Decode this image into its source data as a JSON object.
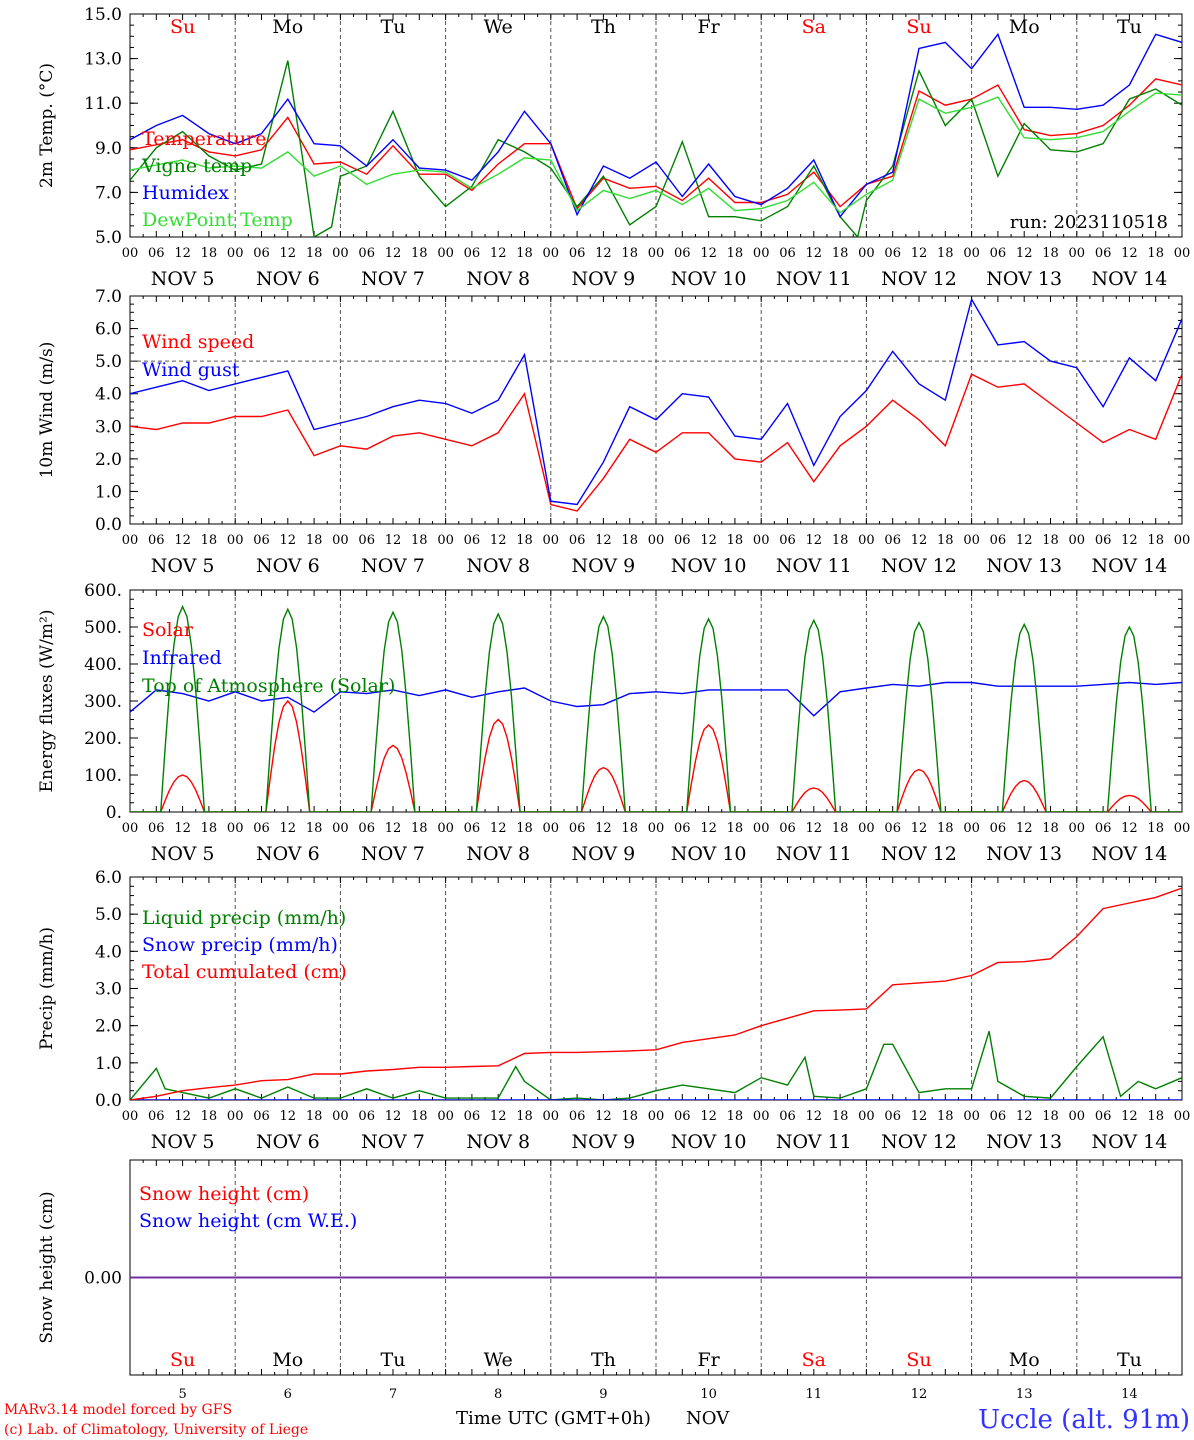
{
  "run_label": "run: 2023110518",
  "station": "Uccle (alt. 91m)",
  "credits": [
    "MARv3.14 model forced by GFS",
    "(c) Lab. of Climatology, University of Liege"
  ],
  "xaxis_title": "Time UTC (GMT+0h)",
  "month_label": "NOV",
  "date_labels": [
    "NOV  5",
    "NOV  6",
    "NOV  7",
    "NOV  8",
    "NOV  9",
    "NOV 10",
    "NOV 11",
    "NOV 12",
    "NOV 13",
    "NOV 14"
  ],
  "weekdays": [
    "Su",
    "Mo",
    "Tu",
    "We",
    "Th",
    "Fr",
    "Sa",
    "Su",
    "Mo",
    "Tu"
  ],
  "weekend_flags": [
    true,
    false,
    false,
    false,
    false,
    false,
    true,
    true,
    false,
    false
  ],
  "day_numbers": [
    "5",
    "6",
    "7",
    "8",
    "9",
    "10",
    "11",
    "12",
    "13",
    "14"
  ],
  "hour_labels": [
    "00",
    "06",
    "12",
    "18"
  ],
  "final_hour_label": "00",
  "colors": {
    "red": "#ff0000",
    "green": "#008000",
    "blue": "#0000ff",
    "light_green": "#33dd33",
    "purple": "#7030a0",
    "grid": "#555555"
  },
  "chart_data": [
    {
      "type": "line",
      "ylabel": "2m Temp. (°C)",
      "ylim": [
        5,
        16
      ],
      "yticks": [
        "5.0",
        "7.0",
        "9.0",
        "11.0",
        "13.0",
        "15.0"
      ],
      "x_unit": "hours since 2023-11-05 00 UTC",
      "series": [
        {
          "name": "Temperature",
          "color": "#ff0000",
          "x": [
            0,
            12,
            18,
            24,
            30,
            36,
            42,
            48,
            54,
            60,
            66,
            72,
            78,
            84,
            90,
            96,
            102,
            108,
            114,
            120,
            126,
            132,
            138,
            144,
            150,
            156,
            162,
            168,
            174,
            180,
            186,
            192,
            198,
            204,
            210,
            216,
            222,
            228,
            234,
            240
          ],
          "y": [
            9.3,
            9.8,
            9.2,
            9.0,
            9.3,
            10.9,
            8.6,
            8.7,
            8.1,
            9.5,
            8.1,
            8.1,
            7.3,
            8.6,
            9.6,
            9.6,
            6.4,
            7.9,
            7.4,
            7.5,
            6.8,
            7.9,
            6.7,
            6.7,
            7.1,
            8.2,
            6.5,
            7.6,
            8.0,
            12.2,
            11.5,
            11.8,
            12.5,
            10.3,
            10.0,
            10.1,
            10.5,
            11.5,
            12.8,
            12.5
          ]
        },
        {
          "name": "Vigne temp",
          "color": "#008000",
          "x": [
            0,
            6,
            12,
            18,
            24,
            30,
            36,
            40,
            42,
            46,
            48,
            54,
            60,
            66,
            72,
            78,
            84,
            90,
            96,
            102,
            108,
            114,
            120,
            126,
            132,
            138,
            144,
            150,
            156,
            162,
            166,
            168,
            174,
            180,
            186,
            192,
            198,
            204,
            210,
            216,
            222,
            228,
            234,
            240
          ],
          "y": [
            7.8,
            9.4,
            10.2,
            9.0,
            8.3,
            8.6,
            13.7,
            8.0,
            5.0,
            5.5,
            8.0,
            8.5,
            11.2,
            8.0,
            6.5,
            7.5,
            9.8,
            9.2,
            8.4,
            6.5,
            8.0,
            5.6,
            6.5,
            9.7,
            6.0,
            6.0,
            5.8,
            6.5,
            8.5,
            6.0,
            5.0,
            6.8,
            8.5,
            13.2,
            10.5,
            11.8,
            8.0,
            10.6,
            9.3,
            9.2,
            9.6,
            11.8,
            12.3,
            11.5
          ]
        },
        {
          "name": "Humidex",
          "color": "#0000ff",
          "x": [
            0,
            6,
            12,
            18,
            24,
            30,
            36,
            42,
            48,
            54,
            60,
            66,
            72,
            78,
            84,
            90,
            96,
            102,
            108,
            114,
            120,
            126,
            132,
            138,
            144,
            150,
            156,
            162,
            168,
            174,
            180,
            186,
            192,
            198,
            204,
            210,
            216,
            222,
            228,
            234,
            240
          ],
          "y": [
            9.8,
            10.5,
            11.0,
            10.1,
            9.6,
            10.1,
            11.8,
            9.6,
            9.5,
            8.5,
            9.8,
            8.4,
            8.3,
            7.8,
            9.2,
            11.2,
            9.6,
            6.1,
            8.5,
            7.9,
            8.7,
            7.0,
            8.6,
            7.0,
            6.6,
            7.4,
            8.8,
            6.0,
            7.6,
            8.2,
            14.3,
            14.6,
            13.3,
            15.0,
            11.4,
            11.4,
            11.3,
            11.5,
            12.5,
            15.0,
            14.6
          ]
        },
        {
          "name": "DewPoint Temp",
          "color": "#33dd33",
          "x": [
            0,
            12,
            18,
            24,
            30,
            36,
            42,
            48,
            54,
            60,
            66,
            72,
            78,
            84,
            90,
            96,
            102,
            108,
            114,
            120,
            126,
            132,
            138,
            144,
            150,
            156,
            162,
            168,
            174,
            180,
            186,
            192,
            198,
            204,
            210,
            216,
            222,
            228,
            234,
            240
          ],
          "y": [
            8.3,
            8.8,
            8.4,
            8.5,
            8.4,
            9.2,
            8.0,
            8.5,
            7.6,
            8.1,
            8.3,
            8.2,
            7.4,
            8.1,
            8.9,
            8.8,
            6.3,
            7.3,
            6.9,
            7.3,
            6.6,
            7.4,
            6.3,
            6.4,
            6.8,
            7.7,
            6.2,
            7.1,
            7.8,
            11.8,
            11.1,
            11.4,
            11.9,
            9.9,
            9.8,
            9.9,
            10.2,
            11.2,
            12.1,
            12.0
          ]
        }
      ]
    },
    {
      "type": "line",
      "ylabel": "10m Wind (m/s)",
      "ylim": [
        0,
        7
      ],
      "yticks": [
        "0.0",
        "1.0",
        "2.0",
        "3.0",
        "4.0",
        "5.0",
        "6.0",
        "7.0"
      ],
      "ref_line": 5.0,
      "series": [
        {
          "name": "Wind speed",
          "color": "#ff0000",
          "x": [
            0,
            6,
            12,
            18,
            24,
            30,
            36,
            42,
            48,
            54,
            60,
            66,
            72,
            78,
            84,
            90,
            96,
            102,
            108,
            114,
            120,
            126,
            132,
            138,
            144,
            150,
            156,
            162,
            168,
            174,
            180,
            186,
            192,
            198,
            204,
            210,
            216,
            222,
            228,
            234,
            240
          ],
          "y": [
            3.0,
            2.9,
            3.1,
            3.1,
            3.3,
            3.3,
            3.5,
            2.1,
            2.4,
            2.3,
            2.7,
            2.8,
            2.6,
            2.4,
            2.8,
            4.0,
            0.6,
            0.4,
            1.4,
            2.6,
            2.2,
            2.8,
            2.8,
            2.0,
            1.9,
            2.5,
            1.3,
            2.4,
            3.0,
            3.8,
            3.2,
            2.4,
            4.6,
            4.2,
            4.3,
            3.7,
            3.1,
            2.5,
            2.9,
            2.6,
            4.6
          ]
        },
        {
          "name": "Wind gust",
          "color": "#0000ff",
          "x": [
            0,
            6,
            12,
            18,
            24,
            30,
            36,
            42,
            48,
            54,
            60,
            66,
            72,
            78,
            84,
            90,
            96,
            102,
            108,
            114,
            120,
            126,
            132,
            138,
            144,
            150,
            156,
            162,
            168,
            174,
            180,
            186,
            192,
            198,
            204,
            210,
            216,
            222,
            228,
            234,
            240
          ],
          "y": [
            4.0,
            4.2,
            4.4,
            4.1,
            4.3,
            4.5,
            4.7,
            2.9,
            3.1,
            3.3,
            3.6,
            3.8,
            3.7,
            3.4,
            3.8,
            5.2,
            0.7,
            0.6,
            1.9,
            3.6,
            3.2,
            4.0,
            3.9,
            2.7,
            2.6,
            3.7,
            1.8,
            3.3,
            4.1,
            5.3,
            4.3,
            3.8,
            6.9,
            5.5,
            5.6,
            5.0,
            4.8,
            3.6,
            5.1,
            4.4,
            6.3
          ]
        }
      ]
    },
    {
      "type": "line",
      "ylabel": "Energy fluxes (W/m²)",
      "ylim": [
        0,
        600
      ],
      "yticks": [
        "0.",
        "100.",
        "200.",
        "300.",
        "400.",
        "500.",
        "600."
      ],
      "series": [
        {
          "name": "Solar",
          "color": "#ff0000",
          "peaks": [
            100,
            300,
            180,
            250,
            120,
            235,
            65,
            115,
            85,
            45
          ]
        },
        {
          "name": "Infrared",
          "color": "#0000ff",
          "x": [
            0,
            6,
            12,
            18,
            24,
            30,
            36,
            42,
            48,
            54,
            60,
            66,
            72,
            78,
            84,
            90,
            96,
            102,
            108,
            114,
            120,
            126,
            132,
            138,
            144,
            150,
            156,
            162,
            168,
            174,
            180,
            186,
            192,
            198,
            204,
            210,
            216,
            222,
            228,
            234,
            240
          ],
          "y": [
            270,
            330,
            320,
            300,
            325,
            300,
            310,
            270,
            325,
            320,
            330,
            315,
            330,
            310,
            325,
            335,
            300,
            285,
            290,
            320,
            325,
            320,
            330,
            330,
            330,
            330,
            260,
            325,
            335,
            345,
            340,
            350,
            350,
            340,
            340,
            340,
            340,
            345,
            350,
            345,
            350
          ]
        },
        {
          "name": "Top of Atmosphere (Solar)",
          "color": "#008000",
          "peaks": [
            555,
            548,
            540,
            535,
            528,
            522,
            518,
            512,
            507,
            500
          ]
        }
      ]
    },
    {
      "type": "line",
      "ylabel": "Precip (mm/h)",
      "ylim": [
        0,
        6
      ],
      "yticks": [
        "0.0",
        "1.0",
        "2.0",
        "3.0",
        "4.0",
        "5.0",
        "6.0"
      ],
      "series": [
        {
          "name": "Liquid precip (mm/h)",
          "color": "#008000",
          "x": [
            0,
            6,
            8,
            12,
            18,
            24,
            30,
            36,
            42,
            48,
            54,
            60,
            66,
            72,
            78,
            84,
            88,
            90,
            96,
            102,
            108,
            114,
            120,
            126,
            132,
            138,
            144,
            150,
            154,
            156,
            162,
            168,
            172,
            174,
            180,
            186,
            192,
            196,
            198,
            204,
            210,
            216,
            222,
            226,
            230,
            234,
            240
          ],
          "y": [
            0.0,
            0.85,
            0.3,
            0.2,
            0.05,
            0.3,
            0.05,
            0.35,
            0.05,
            0.05,
            0.3,
            0.05,
            0.25,
            0.05,
            0.05,
            0.05,
            0.9,
            0.5,
            0.0,
            0.05,
            0.0,
            0.05,
            0.25,
            0.4,
            0.3,
            0.2,
            0.6,
            0.4,
            1.15,
            0.1,
            0.05,
            0.3,
            1.5,
            1.5,
            0.2,
            0.3,
            0.3,
            1.85,
            0.5,
            0.1,
            0.05,
            0.9,
            1.7,
            0.1,
            0.5,
            0.3,
            0.6
          ]
        },
        {
          "name": "Snow precip (mm/h)",
          "color": "#0000ff",
          "x": [
            0,
            240
          ],
          "y": [
            0,
            0
          ]
        },
        {
          "name": "Total cumulated (cm)",
          "color": "#ff0000",
          "x": [
            0,
            6,
            12,
            18,
            24,
            30,
            36,
            42,
            48,
            54,
            60,
            66,
            72,
            78,
            84,
            90,
            96,
            102,
            108,
            114,
            120,
            126,
            132,
            138,
            144,
            150,
            156,
            162,
            168,
            174,
            180,
            186,
            192,
            198,
            204,
            210,
            216,
            222,
            228,
            234,
            240
          ],
          "y": [
            0,
            0.1,
            0.25,
            0.33,
            0.4,
            0.52,
            0.55,
            0.7,
            0.7,
            0.78,
            0.82,
            0.88,
            0.88,
            0.9,
            0.92,
            1.25,
            1.28,
            1.28,
            1.3,
            1.32,
            1.35,
            1.55,
            1.65,
            1.75,
            2.0,
            2.2,
            2.4,
            2.42,
            2.45,
            3.1,
            3.15,
            3.2,
            3.35,
            3.7,
            3.72,
            3.8,
            4.4,
            5.15,
            5.3,
            5.45,
            5.7
          ]
        }
      ]
    },
    {
      "type": "line",
      "ylabel": "Snow height (cm)",
      "yticks": [
        "0.00"
      ],
      "series": [
        {
          "name": "Snow height (cm)",
          "color": "#ff0000",
          "x": [
            0,
            240
          ],
          "y": [
            0,
            0
          ]
        },
        {
          "name": "Snow height (cm W.E.)",
          "color": "#0000ff",
          "x": [
            0,
            240
          ],
          "y": [
            0,
            0
          ]
        }
      ]
    }
  ]
}
